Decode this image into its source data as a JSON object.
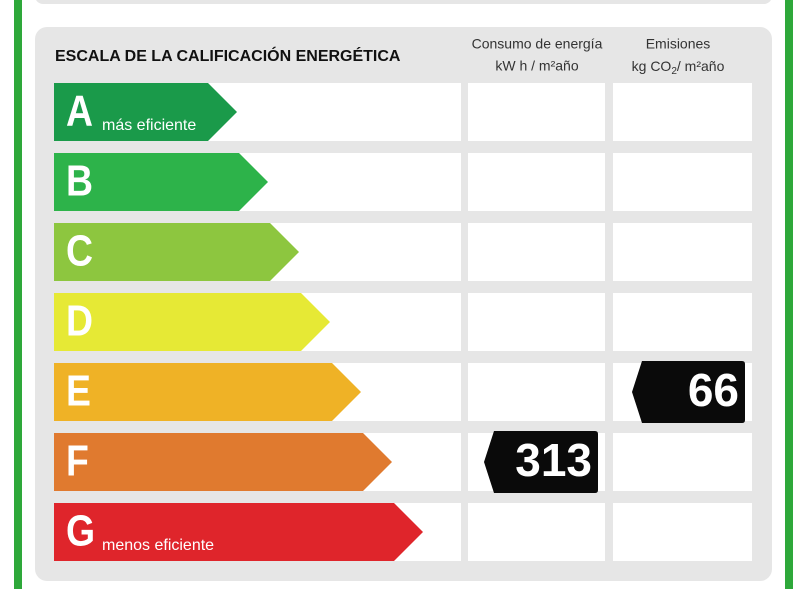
{
  "header": {
    "title": "ESCALA DE LA CALIFICACIÓN ENERGÉTICA",
    "energy": {
      "line1": "Consumo de energía",
      "line2": "kW h / m²año"
    },
    "emissions": {
      "line1": "Emisiones",
      "line2_a": "kg CO",
      "line2_sub": "2",
      "line2_b": "/ m²año"
    }
  },
  "rows": [
    {
      "letter": "A",
      "label": "más eficiente",
      "color": "#1a9a4a",
      "energy": null,
      "emissions": null
    },
    {
      "letter": "B",
      "label": null,
      "color": "#2db34a",
      "energy": null,
      "emissions": null
    },
    {
      "letter": "C",
      "label": null,
      "color": "#8dc63f",
      "energy": null,
      "emissions": null
    },
    {
      "letter": "D",
      "label": null,
      "color": "#e6e935",
      "energy": null,
      "emissions": null
    },
    {
      "letter": "E",
      "label": null,
      "color": "#efb226",
      "energy": null,
      "emissions": 66
    },
    {
      "letter": "F",
      "label": null,
      "color": "#e07a2f",
      "energy": 313,
      "emissions": null
    },
    {
      "letter": "G",
      "label": "menos eficiente",
      "color": "#df252b",
      "energy": null,
      "emissions": null
    }
  ]
}
